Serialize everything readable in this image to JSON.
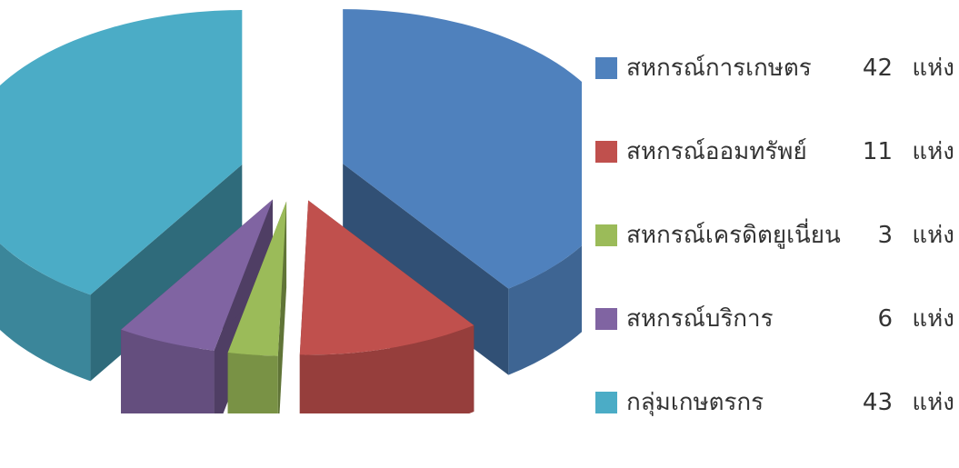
{
  "chart_data": {
    "type": "pie",
    "legend_position": "right",
    "unit": "แห่ง",
    "slices": [
      {
        "label": "สหกรณ์การเกษตร",
        "value": 42,
        "value_text": "42",
        "color": "#4f81bd"
      },
      {
        "label": "สหกรณ์ออมทรัพย์",
        "value": 11,
        "value_text": "11",
        "color": "#c0504d"
      },
      {
        "label": "สหกรณ์เครดิตยูเนี่ยน",
        "value": 3,
        "value_text": "3",
        "color": "#9bbb59"
      },
      {
        "label": "สหกรณ์บริการ",
        "value": 6,
        "value_text": "6",
        "color": "#8064a2"
      },
      {
        "label": "กลุ่มเกษตรกร",
        "value": 43,
        "value_text": "43",
        "color": "#4bacc6"
      }
    ]
  }
}
